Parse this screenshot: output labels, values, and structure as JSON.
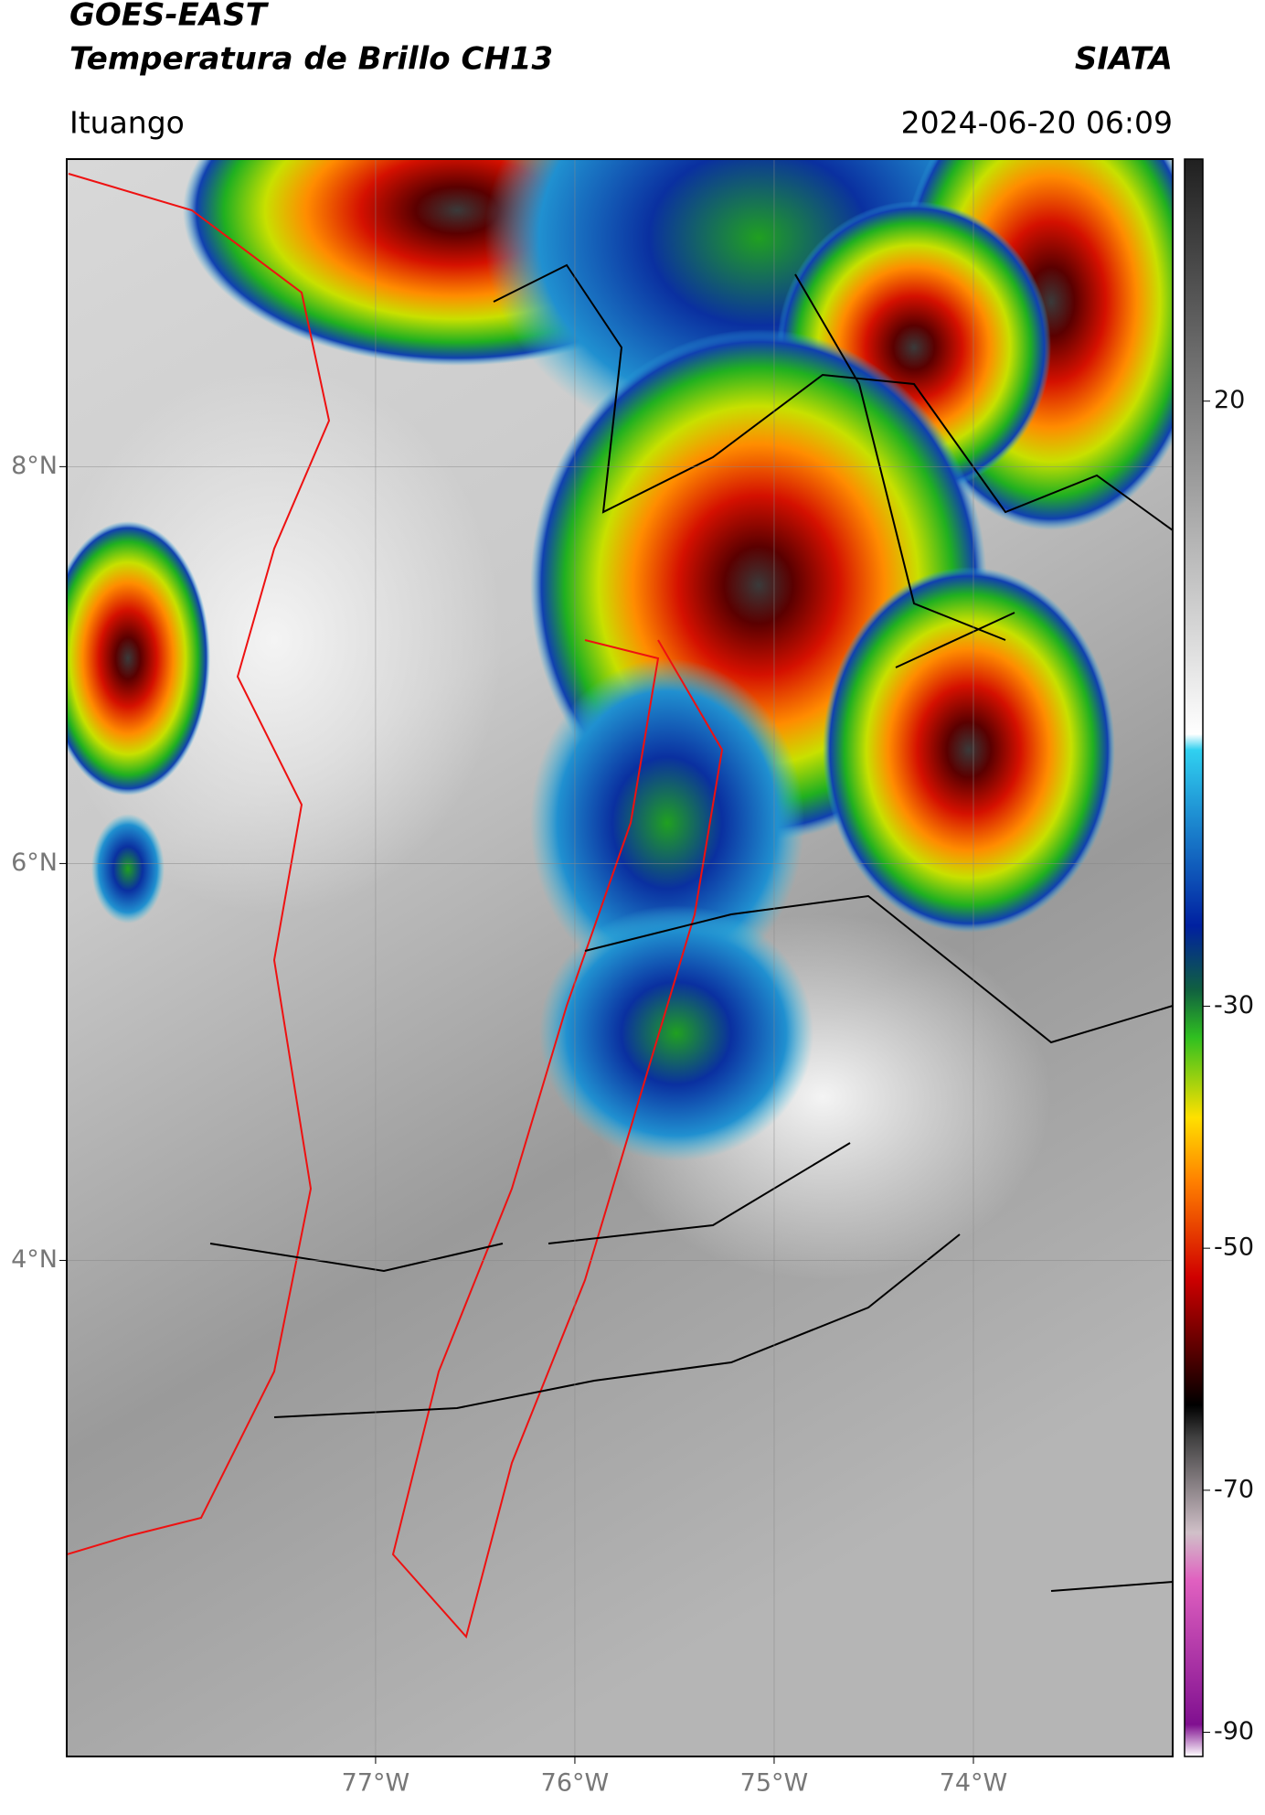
{
  "header": {
    "title_line1": "GOES-EAST",
    "title_line2": "Temperatura de Brillo CH13",
    "source": "SIATA",
    "location": "Ituango",
    "datetime": "2024-06-20 06:09"
  },
  "map": {
    "xlim": [
      -78.55,
      -73.0
    ],
    "ylim": [
      1.5,
      9.55
    ],
    "xticks": [
      {
        "value": -77,
        "label": "77°W"
      },
      {
        "value": -76,
        "label": "76°W"
      },
      {
        "value": -75,
        "label": "75°W"
      },
      {
        "value": -74,
        "label": "74°W"
      }
    ],
    "yticks": [
      {
        "value": 8,
        "label": "8°N"
      },
      {
        "value": 6,
        "label": "6°N"
      },
      {
        "value": 4,
        "label": "4°N"
      }
    ]
  },
  "colorbar": {
    "lim": [
      -92,
      40
    ],
    "ticks": [
      20,
      -30,
      -50,
      -70,
      -90
    ]
  }
}
